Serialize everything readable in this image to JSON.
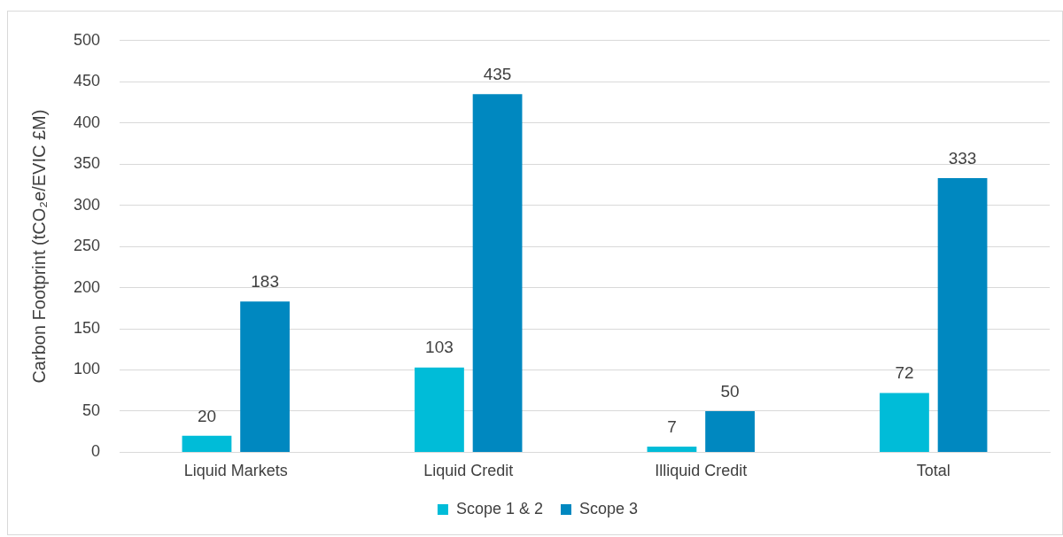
{
  "chart_data": {
    "type": "bar",
    "ylabel": "Carbon Footprint (tCO₂e/EVIC £M)",
    "categories": [
      "Liquid Markets",
      "Liquid Credit",
      "Illiquid Credit",
      "Total"
    ],
    "series": [
      {
        "name": "Scope 1 & 2",
        "color": "#00bcd8",
        "values": [
          20,
          103,
          7,
          72
        ]
      },
      {
        "name": "Scope 3",
        "color": "#0088c0",
        "values": [
          183,
          435,
          50,
          333
        ]
      }
    ],
    "ylim": [
      0,
      500
    ],
    "yticks": [
      0,
      50,
      100,
      150,
      200,
      250,
      300,
      350,
      400,
      450,
      500
    ],
    "grid": "y",
    "legend": "bottom",
    "data_labels": true
  }
}
